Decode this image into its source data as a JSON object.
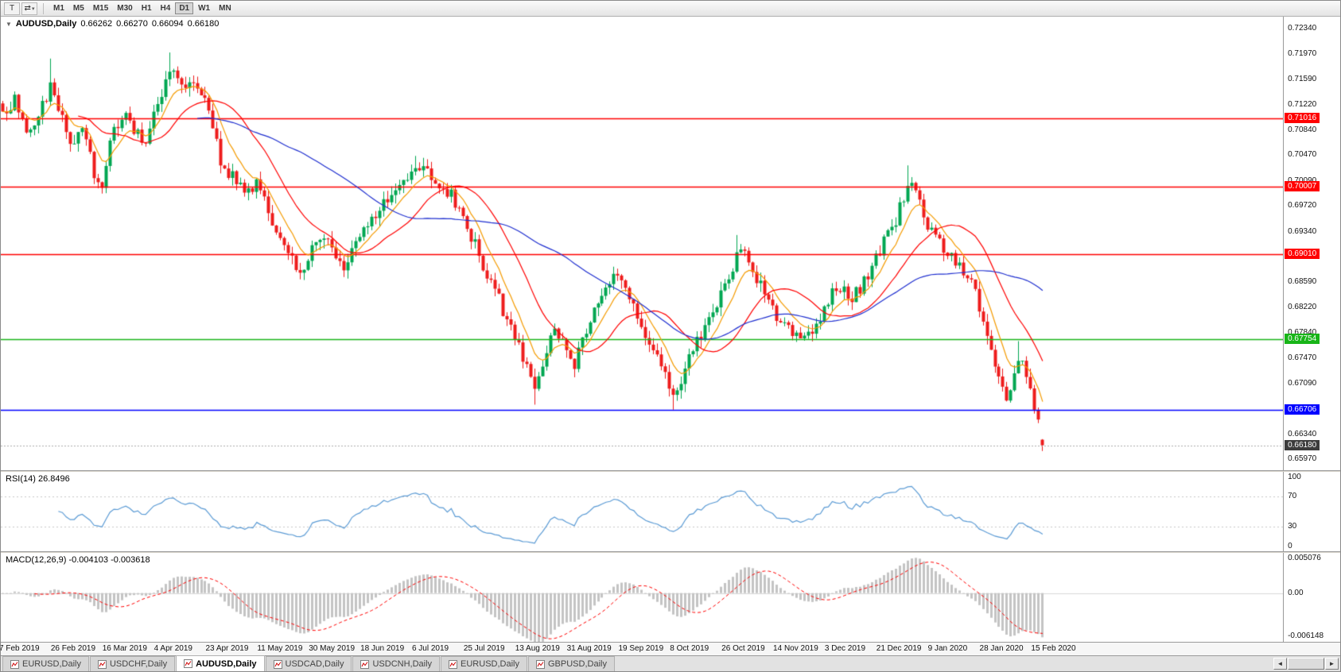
{
  "toolbar": {
    "template_button": "T",
    "cycle_button": "⇄",
    "dropdown_arrow": "▾",
    "timeframes": [
      "M1",
      "M5",
      "M15",
      "M30",
      "H1",
      "H4",
      "D1",
      "W1",
      "MN"
    ],
    "active_timeframe": "D1"
  },
  "chart": {
    "collapse_arrow": "▼",
    "title": "AUDUSD,Daily",
    "ohlc": {
      "open": "0.66262",
      "high": "0.66270",
      "low": "0.66094",
      "close": "0.66180"
    },
    "up_color": "#00a651",
    "down_color": "#ee1c1c",
    "price_range": {
      "top": 0.7252,
      "bottom": 0.6581
    },
    "y_ticks": [
      "0.72340",
      "0.71970",
      "0.71590",
      "0.71220",
      "0.70840",
      "0.70470",
      "0.70090",
      "0.69720",
      "0.69340",
      "0.68970",
      "0.68590",
      "0.68220",
      "0.67840",
      "0.67470",
      "0.67090",
      "0.66720",
      "0.66340",
      "0.65970"
    ],
    "x_ticks": [
      "7 Feb 2019",
      "26 Feb 2019",
      "16 Mar 2019",
      "4 Apr 2019",
      "23 Apr 2019",
      "11 May 2019",
      "30 May 2019",
      "18 Jun 2019",
      "6 Jul 2019",
      "25 Jul 2019",
      "13 Aug 2019",
      "31 Aug 2019",
      "19 Sep 2019",
      "8 Oct 2019",
      "26 Oct 2019",
      "14 Nov 2019",
      "3 Dec 2019",
      "21 Dec 2019",
      "9 Jan 2020",
      "28 Jan 2020",
      "15 Feb 2020"
    ],
    "levels": [
      {
        "price": 0.71016,
        "label": "0.71016",
        "color": "#ff0000"
      },
      {
        "price": 0.70007,
        "label": "0.70007",
        "color": "#ff0000"
      },
      {
        "price": 0.6901,
        "label": "0.69010",
        "color": "#ff0000"
      },
      {
        "price": 0.67754,
        "label": "0.67754",
        "color": "#18b518"
      },
      {
        "price": 0.66706,
        "label": "0.66706",
        "color": "#0000ff"
      }
    ],
    "current_price": {
      "value": 0.6618,
      "label": "0.66180",
      "bg": "#3c3c3c"
    },
    "ma_lines": [
      {
        "name": "ma-fast-orange",
        "type": "ema",
        "period": 8,
        "color": "#f59b00"
      },
      {
        "name": "ma-mid-red",
        "type": "sma",
        "period": 20,
        "color": "#ff0000"
      },
      {
        "name": "ma-slow-blue",
        "type": "sma",
        "period": 50,
        "color": "#1f2fd0"
      }
    ]
  },
  "rsi_panel": {
    "label": "RSI(14) 26.8496",
    "line_color": "#5b9bd5",
    "y_ticks": [
      100,
      70,
      30,
      0
    ],
    "dotted_levels": [
      70,
      30
    ]
  },
  "macd_panel": {
    "label": "MACD(12,26,9) -0.004103 -0.003618",
    "bar_color": "#c4c4c4",
    "signal_color": "#ff0000",
    "y_ticks": [
      "0.005076",
      "0.00",
      "-0.006148"
    ],
    "range": {
      "max": 0.005076,
      "min": -0.006148
    }
  },
  "bottom_tabs": {
    "tabs": [
      "EURUSD,Daily",
      "USDCHF,Daily",
      "AUDUSD,Daily",
      "USDCAD,Daily",
      "USDCNH,Daily",
      "EURUSD,Daily",
      "GBPUSD,Daily"
    ],
    "active_index": 2
  },
  "scrollbar": {
    "left_arrow": "◄",
    "right_arrow": "►"
  },
  "chart_data": {
    "type": "candlestick",
    "symbol": "AUDUSD",
    "timeframe": "Daily",
    "bars": 263,
    "x_range": [
      "7 Feb 2019",
      "15 Feb 2020"
    ],
    "y_range": [
      0.6597,
      0.7234
    ],
    "last_candle": {
      "o": 0.66262,
      "h": 0.6627,
      "l": 0.66094,
      "c": 0.6618
    },
    "close_waypoints": [
      [
        0,
        0.7105
      ],
      [
        3,
        0.713
      ],
      [
        6,
        0.7078
      ],
      [
        9,
        0.7108
      ],
      [
        12,
        0.7148
      ],
      [
        14,
        0.7118
      ],
      [
        17,
        0.7062
      ],
      [
        20,
        0.709
      ],
      [
        23,
        0.7022
      ],
      [
        25,
        0.7008
      ],
      [
        27,
        0.7066
      ],
      [
        30,
        0.7108
      ],
      [
        33,
        0.7088
      ],
      [
        36,
        0.7062
      ],
      [
        39,
        0.7125
      ],
      [
        42,
        0.7172
      ],
      [
        45,
        0.7158
      ],
      [
        48,
        0.715
      ],
      [
        51,
        0.7138
      ],
      [
        53,
        0.7095
      ],
      [
        55,
        0.703
      ],
      [
        58,
        0.7014
      ],
      [
        61,
        0.6992
      ],
      [
        64,
        0.7002
      ],
      [
        66,
        0.6978
      ],
      [
        69,
        0.694
      ],
      [
        72,
        0.6902
      ],
      [
        75,
        0.6874
      ],
      [
        78,
        0.6906
      ],
      [
        81,
        0.6926
      ],
      [
        84,
        0.6896
      ],
      [
        86,
        0.6872
      ],
      [
        89,
        0.6922
      ],
      [
        92,
        0.6938
      ],
      [
        95,
        0.6966
      ],
      [
        98,
        0.6992
      ],
      [
        101,
        0.7012
      ],
      [
        104,
        0.7036
      ],
      [
        107,
        0.7024
      ],
      [
        110,
        0.7002
      ],
      [
        113,
        0.699
      ],
      [
        116,
        0.6958
      ],
      [
        118,
        0.6928
      ],
      [
        121,
        0.6884
      ],
      [
        124,
        0.6852
      ],
      [
        127,
        0.6802
      ],
      [
        130,
        0.6768
      ],
      [
        132,
        0.6732
      ],
      [
        134,
        0.6698
      ],
      [
        137,
        0.6756
      ],
      [
        139,
        0.6786
      ],
      [
        141,
        0.6768
      ],
      [
        144,
        0.6736
      ],
      [
        146,
        0.6772
      ],
      [
        149,
        0.6816
      ],
      [
        152,
        0.6846
      ],
      [
        155,
        0.6872
      ],
      [
        157,
        0.6858
      ],
      [
        159,
        0.6828
      ],
      [
        161,
        0.6792
      ],
      [
        164,
        0.6758
      ],
      [
        167,
        0.6718
      ],
      [
        169,
        0.6688
      ],
      [
        171,
        0.6716
      ],
      [
        173,
        0.6746
      ],
      [
        176,
        0.6782
      ],
      [
        179,
        0.6812
      ],
      [
        181,
        0.6842
      ],
      [
        183,
        0.6862
      ],
      [
        185,
        0.6896
      ],
      [
        187,
        0.6908
      ],
      [
        189,
        0.6878
      ],
      [
        191,
        0.6854
      ],
      [
        194,
        0.682
      ],
      [
        196,
        0.68
      ],
      [
        199,
        0.6788
      ],
      [
        201,
        0.6768
      ],
      [
        204,
        0.6786
      ],
      [
        206,
        0.6806
      ],
      [
        209,
        0.6842
      ],
      [
        211,
        0.6854
      ],
      [
        213,
        0.6832
      ],
      [
        216,
        0.6852
      ],
      [
        219,
        0.6882
      ],
      [
        221,
        0.6902
      ],
      [
        223,
        0.6932
      ],
      [
        225,
        0.6952
      ],
      [
        227,
        0.6988
      ],
      [
        229,
        0.7008
      ],
      [
        231,
        0.6974
      ],
      [
        233,
        0.6942
      ],
      [
        235,
        0.6926
      ],
      [
        238,
        0.6902
      ],
      [
        241,
        0.6886
      ],
      [
        243,
        0.6868
      ],
      [
        245,
        0.6848
      ],
      [
        247,
        0.6802
      ],
      [
        249,
        0.6768
      ],
      [
        251,
        0.6716
      ],
      [
        253,
        0.6692
      ],
      [
        255,
        0.6722
      ],
      [
        257,
        0.6746
      ],
      [
        259,
        0.67
      ],
      [
        261,
        0.6652
      ],
      [
        262,
        0.6626
      ]
    ],
    "anchors": [
      {
        "i": 12,
        "high": 0.719
      },
      {
        "i": 25,
        "low": 0.6999
      },
      {
        "i": 42,
        "high": 0.7199
      },
      {
        "i": 75,
        "low": 0.6865
      },
      {
        "i": 104,
        "high": 0.7046
      },
      {
        "i": 134,
        "low": 0.6678
      },
      {
        "i": 169,
        "low": 0.66706
      },
      {
        "i": 185,
        "high": 0.6929
      },
      {
        "i": 228,
        "high": 0.7032
      },
      {
        "i": 256,
        "high": 0.6772
      }
    ],
    "indicators": [
      {
        "name": "RSI",
        "period": 14,
        "last_value": 26.8496
      },
      {
        "name": "MACD",
        "fast": 12,
        "slow": 26,
        "signal": 9,
        "last_values": [
          -0.004103,
          -0.003618
        ]
      }
    ]
  }
}
